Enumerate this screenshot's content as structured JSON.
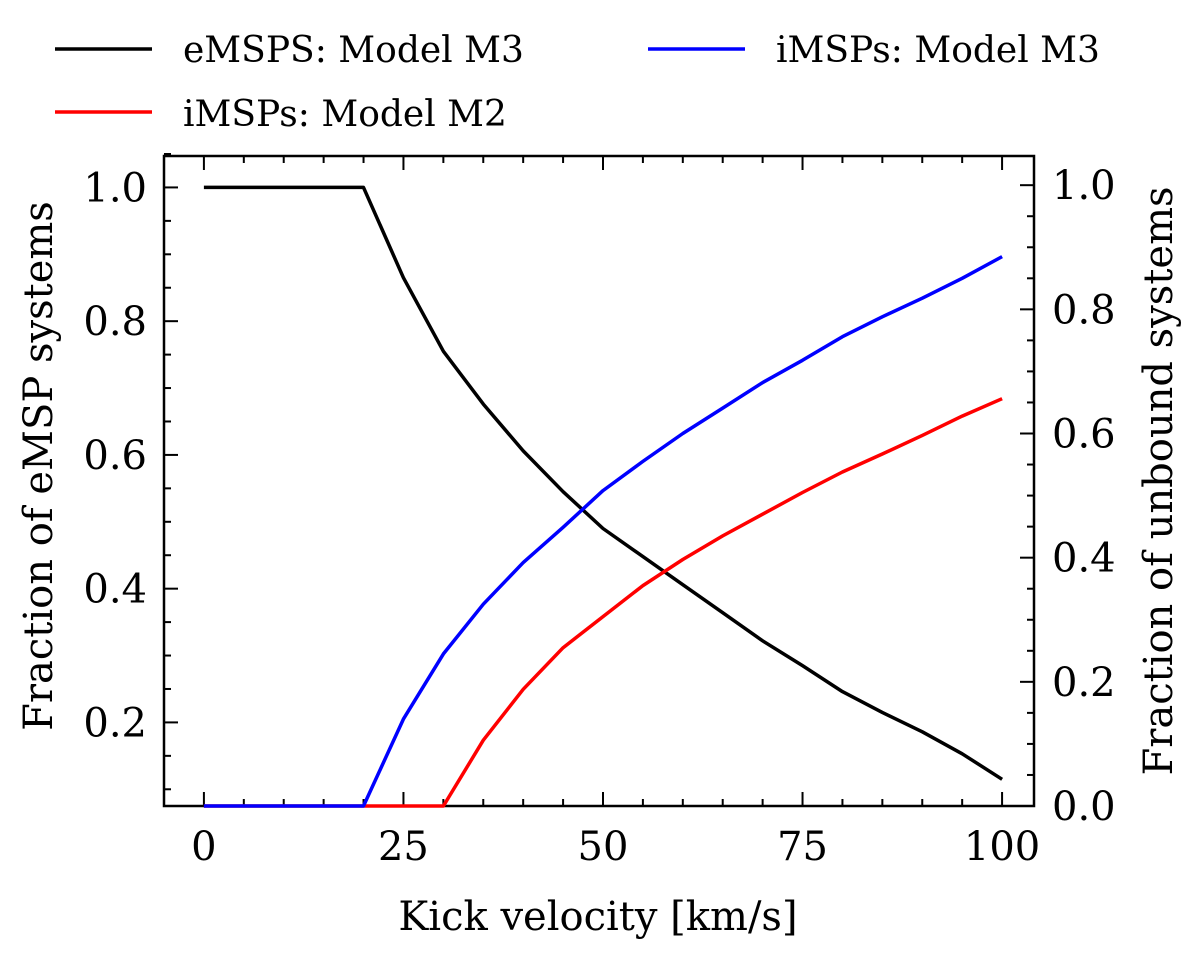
{
  "chart_data": {
    "type": "line",
    "xlabel": "Kick velocity [km/s]",
    "ylabel_left": "Fraction of eMSP systems",
    "ylabel_right": "Fraction of unbound systems",
    "xlim": [
      -5,
      104
    ],
    "ylim_left": [
      0.075,
      1.047
    ],
    "ylim_right": [
      0.0,
      1.047
    ],
    "x_ticks": [
      0,
      25,
      50,
      75,
      100
    ],
    "x_tick_labels": [
      "0",
      "25",
      "50",
      "75",
      "100"
    ],
    "y_left_ticks": [
      0.2,
      0.4,
      0.6,
      0.8,
      1.0
    ],
    "y_left_tick_labels": [
      "0.2",
      "0.4",
      "0.6",
      "0.8",
      "1.0"
    ],
    "y_right_ticks": [
      0.0,
      0.2,
      0.4,
      0.6,
      0.8,
      1.0
    ],
    "y_right_tick_labels": [
      "0.0",
      "0.2",
      "0.4",
      "0.6",
      "0.8",
      "1.0"
    ],
    "series": [
      {
        "name": "eMSPS: Model M3",
        "axis": "left",
        "color": "#000000",
        "x": [
          0,
          5,
          10,
          15,
          20,
          25,
          30,
          35,
          40,
          45,
          50,
          55,
          60,
          65,
          70,
          75,
          80,
          85,
          90,
          95,
          100
        ],
        "values": [
          1.0,
          1.0,
          1.0,
          1.0,
          1.0,
          0.865,
          0.755,
          0.676,
          0.606,
          0.545,
          0.49,
          0.448,
          0.406,
          0.364,
          0.322,
          0.285,
          0.246,
          0.215,
          0.186,
          0.153,
          0.115
        ]
      },
      {
        "name": "iMSPs: Model M2",
        "axis": "right",
        "color": "#ff0000",
        "x": [
          0,
          5,
          10,
          15,
          20,
          25,
          30,
          35,
          40,
          45,
          50,
          55,
          60,
          65,
          70,
          75,
          80,
          85,
          90,
          95,
          100
        ],
        "values": [
          0.0,
          0.0,
          0.0,
          0.0,
          0.0,
          0.0,
          0.0,
          0.106,
          0.188,
          0.255,
          0.305,
          0.355,
          0.397,
          0.435,
          0.47,
          0.505,
          0.538,
          0.567,
          0.597,
          0.628,
          0.656
        ]
      },
      {
        "name": "iMSPs: Model M3",
        "axis": "right",
        "color": "#0000ff",
        "x": [
          0,
          5,
          10,
          15,
          20,
          25,
          30,
          35,
          40,
          45,
          50,
          55,
          60,
          65,
          70,
          75,
          80,
          85,
          90,
          95,
          100
        ],
        "values": [
          0.0,
          0.0,
          0.0,
          0.0,
          0.0,
          0.14,
          0.245,
          0.325,
          0.392,
          0.449,
          0.508,
          0.555,
          0.6,
          0.641,
          0.682,
          0.718,
          0.756,
          0.788,
          0.818,
          0.85,
          0.885
        ]
      }
    ]
  }
}
